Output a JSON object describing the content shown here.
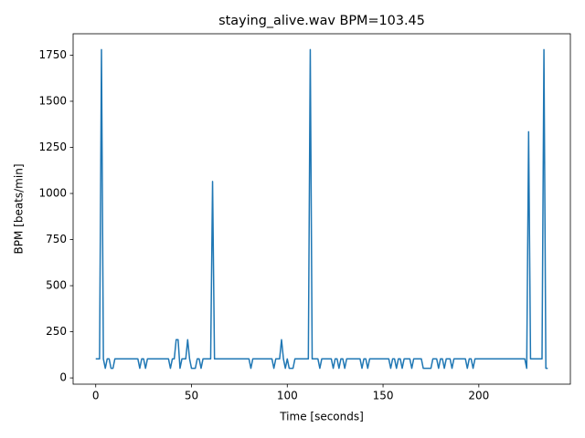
{
  "chart_data": {
    "type": "line",
    "title": "staying_alive.wav BPM=103.45",
    "xlabel": "Time [seconds]",
    "ylabel": "BPM [beats/min]",
    "color": "#1f77b4",
    "x": [
      0,
      2,
      3,
      4,
      5,
      6,
      7,
      8,
      9,
      10,
      22,
      23,
      24,
      25,
      26,
      27,
      38,
      39,
      40,
      41,
      42,
      43,
      44,
      45,
      47,
      48,
      49,
      50,
      52,
      53,
      54,
      55,
      56,
      60,
      61,
      62,
      80,
      81,
      82,
      92,
      93,
      94,
      96,
      97,
      98,
      99,
      100,
      101,
      103,
      104,
      111,
      112,
      113,
      116,
      117,
      118,
      123,
      124,
      125,
      126,
      127,
      128,
      129,
      130,
      131,
      138,
      139,
      140,
      141,
      142,
      143,
      153,
      154,
      155,
      156,
      157,
      158,
      159,
      160,
      161,
      164,
      165,
      166,
      170,
      171,
      175,
      176,
      178,
      179,
      180,
      181,
      182,
      183,
      185,
      186,
      187,
      193,
      194,
      195,
      196,
      197,
      198,
      224,
      225,
      226,
      227,
      233,
      234,
      235,
      236
    ],
    "values": [
      103,
      103,
      1780,
      103,
      52,
      103,
      103,
      52,
      52,
      103,
      103,
      52,
      103,
      103,
      52,
      103,
      103,
      52,
      103,
      103,
      207,
      207,
      52,
      103,
      103,
      207,
      103,
      52,
      52,
      103,
      103,
      52,
      103,
      103,
      1065,
      103,
      103,
      52,
      103,
      103,
      52,
      103,
      103,
      207,
      103,
      52,
      103,
      52,
      52,
      103,
      103,
      1780,
      103,
      103,
      52,
      103,
      103,
      52,
      103,
      103,
      52,
      103,
      103,
      52,
      103,
      103,
      52,
      103,
      103,
      52,
      103,
      103,
      52,
      103,
      103,
      52,
      103,
      103,
      52,
      103,
      103,
      52,
      103,
      103,
      52,
      52,
      103,
      103,
      52,
      103,
      103,
      52,
      103,
      103,
      52,
      103,
      103,
      52,
      103,
      103,
      52,
      103,
      103,
      52,
      1335,
      103,
      103,
      1780,
      52,
      52
    ],
    "xlim": [
      -11.8,
      247.8
    ],
    "ylim": [
      -34,
      1866
    ],
    "xticks": [
      0,
      50,
      100,
      150,
      200
    ],
    "yticks": [
      0,
      250,
      500,
      750,
      1000,
      1250,
      1500,
      1750
    ]
  }
}
